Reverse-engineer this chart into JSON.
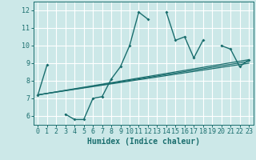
{
  "xlabel": "Humidex (Indice chaleur)",
  "bg_color": "#cce8e8",
  "grid_color": "#ffffff",
  "line_color": "#1a6e6e",
  "xlim": [
    -0.5,
    23.5
  ],
  "ylim": [
    5.5,
    12.5
  ],
  "yticks": [
    6,
    7,
    8,
    9,
    10,
    11,
    12
  ],
  "xticks": [
    0,
    1,
    2,
    3,
    4,
    5,
    6,
    7,
    8,
    9,
    10,
    11,
    12,
    13,
    14,
    15,
    16,
    17,
    18,
    19,
    20,
    21,
    22,
    23
  ],
  "series_main": {
    "segments": [
      {
        "x": [
          0,
          1
        ],
        "y": [
          7.2,
          8.9
        ]
      },
      {
        "x": [
          3,
          4,
          5,
          6,
          7,
          8,
          9,
          10,
          11,
          12
        ],
        "y": [
          6.1,
          5.8,
          5.8,
          7.0,
          7.1,
          8.1,
          8.8,
          10.0,
          11.9,
          11.5
        ]
      },
      {
        "x": [
          14,
          15,
          16,
          17,
          18
        ],
        "y": [
          11.9,
          10.3,
          10.5,
          9.3,
          10.3
        ]
      },
      {
        "x": [
          20,
          21,
          22,
          23
        ],
        "y": [
          10.0,
          9.8,
          8.8,
          9.2
        ]
      }
    ]
  },
  "series_lines": [
    {
      "x": [
        0,
        23
      ],
      "y": [
        7.2,
        9.15
      ]
    },
    {
      "x": [
        0,
        23
      ],
      "y": [
        7.2,
        9.1
      ]
    },
    {
      "x": [
        0,
        23
      ],
      "y": [
        7.2,
        9.05
      ]
    }
  ]
}
